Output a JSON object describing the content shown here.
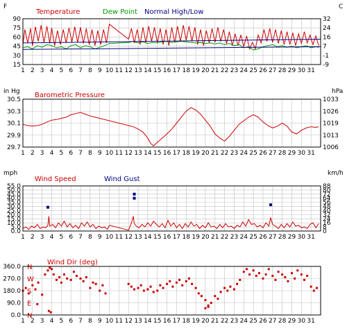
{
  "colors": {
    "background": "#ffffff",
    "panel_border": "#000000",
    "grid": "#c0c0c0",
    "temperature": "#cc0000",
    "dew_point": "#009900",
    "normal_hilo": "#000080",
    "pressure": "#cc0000",
    "wind_speed": "#cc0000",
    "wind_gust": "#000080",
    "wind_dir": "#cc0000"
  },
  "x_ticks": [
    "1",
    "2",
    "3",
    "4",
    "5",
    "6",
    "7",
    "8",
    "9",
    "10",
    "11",
    "12",
    "13",
    "14",
    "15",
    "16",
    "17",
    "18",
    "19",
    "20",
    "21",
    "22",
    "23",
    "24",
    "25",
    "26",
    "27",
    "28",
    "29",
    "30",
    "31"
  ],
  "chart_data": [
    {
      "type": "line",
      "title": "",
      "legend": [
        "Temperature",
        "Dew Point",
        "Normal High/Low"
      ],
      "left_unit": "F",
      "right_unit": "C",
      "xlim": [
        1,
        32
      ],
      "ylim": [
        15,
        100
      ],
      "y_ticks_left": [
        "90",
        "75",
        "60",
        "45",
        "30",
        "15"
      ],
      "y_ticks_right": [
        "32",
        "24",
        "16",
        "7",
        "-1",
        "-9"
      ],
      "grid": true,
      "series": [
        {
          "name": "Temperature",
          "x": [
            1.0,
            1.2,
            1.5,
            1.8,
            2.0,
            2.3,
            2.6,
            2.9,
            3.2,
            3.5,
            3.8,
            4.0,
            4.3,
            4.6,
            4.9,
            5.2,
            5.5,
            5.8,
            6.1,
            6.4,
            6.7,
            7.0,
            7.3,
            7.6,
            7.9,
            8.2,
            8.5,
            8.8,
            9.1,
            9.4,
            9.7,
            10.0,
            12.0,
            12.3,
            12.6,
            12.9,
            13.2,
            13.5,
            13.8,
            14.1,
            14.4,
            14.7,
            15.0,
            15.3,
            15.6,
            15.9,
            16.2,
            16.5,
            16.8,
            17.1,
            17.4,
            17.7,
            18.0,
            18.3,
            18.6,
            18.9,
            19.2,
            19.5,
            19.8,
            20.1,
            20.4,
            20.7,
            21.0,
            21.3,
            21.6,
            21.9,
            22.2,
            22.5,
            22.8,
            23.1,
            23.4,
            23.7,
            24.0,
            24.3,
            24.6,
            24.9,
            25.2,
            25.5,
            25.8,
            26.1,
            26.4,
            26.7,
            27.0,
            27.3,
            27.6,
            27.9,
            28.2,
            28.5,
            28.8,
            29.1,
            29.4,
            29.7,
            30.0,
            30.3,
            30.6,
            30.9,
            31.2,
            31.5,
            31.8
          ],
          "y": [
            52,
            80,
            55,
            82,
            50,
            85,
            58,
            88,
            56,
            86,
            54,
            83,
            50,
            78,
            52,
            80,
            55,
            83,
            57,
            85,
            56,
            84,
            54,
            82,
            52,
            80,
            50,
            78,
            52,
            80,
            55,
            90,
            62,
            82,
            55,
            80,
            52,
            84,
            56,
            86,
            58,
            84,
            55,
            82,
            52,
            80,
            50,
            84,
            56,
            86,
            58,
            88,
            60,
            86,
            58,
            84,
            52,
            80,
            50,
            78,
            55,
            82,
            56,
            84,
            58,
            80,
            54,
            76,
            50,
            72,
            50,
            70,
            48,
            68,
            44,
            56,
            44,
            70,
            55,
            80,
            58,
            82,
            56,
            80,
            54,
            78,
            52,
            76,
            52,
            74,
            50,
            72,
            54,
            76,
            55,
            70,
            52,
            68,
            50
          ]
        },
        {
          "name": "Dew Point",
          "x": [
            1.0,
            1.5,
            2.0,
            2.5,
            3.0,
            3.5,
            4.0,
            4.5,
            5.0,
            5.5,
            6.0,
            6.5,
            7.0,
            7.5,
            8.0,
            8.5,
            9.0,
            9.5,
            10.0,
            12.0,
            12.5,
            13.0,
            13.5,
            14.0,
            14.5,
            15.0,
            15.5,
            16.0,
            16.5,
            17.0,
            17.5,
            18.0,
            18.5,
            19.0,
            19.5,
            20.0,
            20.5,
            21.0,
            21.5,
            22.0,
            22.5,
            23.0,
            23.5,
            24.0,
            24.5,
            25.0,
            25.5,
            26.0,
            26.5,
            27.0,
            27.5,
            28.0,
            28.5,
            29.0,
            29.5,
            30.0,
            30.5,
            31.0,
            31.5,
            31.8
          ],
          "y": [
            46,
            48,
            44,
            50,
            47,
            52,
            50,
            46,
            48,
            44,
            50,
            52,
            46,
            50,
            48,
            44,
            47,
            50,
            54,
            56,
            58,
            55,
            57,
            54,
            56,
            55,
            57,
            58,
            56,
            57,
            58,
            57,
            56,
            55,
            56,
            54,
            55,
            53,
            55,
            52,
            54,
            50,
            52,
            46,
            48,
            42,
            44,
            48,
            50,
            52,
            48,
            50,
            47,
            49,
            46,
            48,
            50,
            46,
            48,
            47
          ]
        },
        {
          "name": "Normal High",
          "x": [
            1,
            32
          ],
          "y": [
            55,
            62
          ]
        },
        {
          "name": "Normal Low",
          "x": [
            1,
            32
          ],
          "y": [
            43,
            48
          ]
        }
      ]
    },
    {
      "type": "line",
      "title": "Barometric Pressure",
      "left_unit": "in Hg",
      "right_unit": "hPa",
      "xlim": [
        1,
        32
      ],
      "ylim": [
        29.7,
        30.5
      ],
      "y_ticks_left": [
        "30.5",
        "30.3",
        "30.1",
        "29.9",
        "29.7"
      ],
      "y_ticks_right": [
        "1033",
        "1026",
        "1019",
        "1013",
        "1006"
      ],
      "grid": true,
      "series": [
        {
          "name": "Barometric Pressure",
          "x": [
            1.0,
            1.5,
            2.0,
            2.5,
            3.0,
            3.5,
            4.0,
            4.5,
            5.0,
            5.5,
            6.0,
            6.5,
            7.0,
            7.5,
            8.0,
            8.5,
            9.0,
            9.5,
            10.0,
            10.5,
            11.0,
            11.5,
            12.0,
            12.5,
            13.0,
            13.5,
            14.0,
            14.3,
            14.6,
            15.0,
            15.5,
            16.0,
            16.5,
            17.0,
            17.5,
            18.0,
            18.5,
            19.0,
            19.5,
            20.0,
            20.5,
            21.0,
            21.5,
            22.0,
            22.5,
            23.0,
            23.5,
            24.0,
            24.5,
            25.0,
            25.5,
            26.0,
            26.5,
            27.0,
            27.5,
            28.0,
            28.5,
            29.0,
            29.5,
            30.0,
            30.5,
            31.0,
            31.5,
            31.8
          ],
          "y": [
            30.08,
            30.06,
            30.05,
            30.06,
            30.08,
            30.12,
            30.15,
            30.16,
            30.18,
            30.2,
            30.24,
            30.26,
            30.28,
            30.25,
            30.22,
            30.2,
            30.18,
            30.16,
            30.14,
            30.12,
            30.1,
            30.08,
            30.06,
            30.04,
            30.0,
            29.95,
            29.85,
            29.76,
            29.72,
            29.78,
            29.85,
            29.92,
            30.0,
            30.1,
            30.2,
            30.3,
            30.36,
            30.32,
            30.25,
            30.15,
            30.05,
            29.92,
            29.85,
            29.8,
            29.88,
            29.98,
            30.08,
            30.14,
            30.2,
            30.24,
            30.2,
            30.12,
            30.06,
            30.02,
            30.05,
            30.1,
            30.05,
            29.95,
            29.92,
            29.98,
            30.02,
            30.04,
            30.03,
            30.04
          ]
        }
      ]
    },
    {
      "type": "line",
      "title": "",
      "legend": [
        "Wind Speed",
        "Wind Gust"
      ],
      "left_unit": "mph",
      "right_unit": "km/h",
      "xlim": [
        1,
        32
      ],
      "ylim": [
        0,
        55
      ],
      "y_ticks_left": [
        "55.0",
        "50.0",
        "45.0",
        "40.0",
        "35.0",
        "30.0",
        "25.0",
        "20.0",
        "15.0",
        "10.0",
        "5.0",
        "0.0"
      ],
      "y_ticks_right": [
        "88",
        "80",
        "72",
        "64",
        "56",
        "48",
        "40",
        "32",
        "24",
        "16",
        "8",
        "0"
      ],
      "grid": true,
      "series": [
        {
          "name": "Wind Speed",
          "x": [
            1.0,
            1.3,
            1.6,
            1.9,
            2.2,
            2.5,
            2.8,
            3.1,
            3.4,
            3.6,
            3.7,
            3.8,
            4.1,
            4.4,
            4.7,
            5.0,
            5.3,
            5.6,
            5.9,
            6.2,
            6.5,
            6.8,
            7.1,
            7.4,
            7.7,
            8.0,
            8.3,
            8.6,
            8.9,
            9.2,
            9.5,
            9.8,
            10.0,
            12.0,
            12.3,
            12.5,
            12.6,
            12.8,
            13.1,
            13.4,
            13.7,
            14.0,
            14.3,
            14.6,
            14.9,
            15.2,
            15.5,
            15.8,
            16.1,
            16.4,
            16.7,
            17.0,
            17.3,
            17.6,
            17.9,
            18.2,
            18.5,
            18.8,
            19.1,
            19.4,
            19.7,
            20.0,
            20.3,
            20.6,
            20.9,
            21.2,
            21.5,
            21.8,
            22.1,
            22.4,
            22.7,
            23.0,
            23.3,
            23.6,
            23.9,
            24.2,
            24.5,
            24.8,
            25.1,
            25.4,
            25.7,
            26.0,
            26.3,
            26.6,
            26.8,
            27.0,
            27.3,
            27.6,
            27.9,
            28.2,
            28.5,
            28.8,
            29.1,
            29.4,
            29.7,
            30.0,
            30.3,
            30.6,
            30.9,
            31.2,
            31.5,
            31.8
          ],
          "y": [
            3,
            5,
            2,
            6,
            4,
            8,
            3,
            5,
            4,
            7,
            18,
            6,
            8,
            4,
            10,
            6,
            12,
            5,
            9,
            4,
            7,
            3,
            10,
            6,
            11,
            5,
            8,
            3,
            6,
            4,
            5,
            2,
            7,
            1,
            10,
            18,
            9,
            6,
            4,
            8,
            5,
            10,
            6,
            12,
            8,
            5,
            9,
            4,
            13,
            6,
            10,
            4,
            8,
            3,
            9,
            5,
            11,
            6,
            8,
            3,
            7,
            4,
            10,
            5,
            6,
            3,
            8,
            4,
            9,
            5,
            6,
            3,
            7,
            5,
            11,
            6,
            14,
            8,
            9,
            5,
            7,
            4,
            10,
            6,
            16,
            8,
            6,
            3,
            8,
            4,
            9,
            5,
            11,
            6,
            7,
            4,
            5,
            3,
            8,
            10,
            4,
            9
          ]
        },
        {
          "name": "Wind Gust",
          "x": [
            3.6,
            12.6,
            12.6,
            26.8
          ],
          "y": [
            29,
            40,
            45,
            32
          ]
        }
      ]
    },
    {
      "type": "scatter",
      "title": "Wind Dir (deg)",
      "left_unit": "",
      "xlim": [
        1,
        32
      ],
      "ylim": [
        0,
        360
      ],
      "y_ticks_left": [
        "360.0",
        "270.0",
        "180.0",
        "90.0",
        "0.0"
      ],
      "y_compass": [
        "N",
        "W",
        "S",
        "E",
        "N"
      ],
      "grid": true,
      "series": [
        {
          "name": "Wind Dir (deg)",
          "x": [
            1.0,
            1.3,
            1.6,
            2.0,
            2.3,
            2.6,
            3.0,
            3.3,
            3.6,
            3.8,
            4.0,
            4.2,
            4.5,
            4.8,
            5.0,
            5.3,
            5.6,
            6.0,
            6.3,
            6.6,
            7.0,
            7.3,
            7.6,
            8.0,
            8.3,
            8.6,
            9.0,
            9.3,
            9.6,
            12.0,
            12.3,
            12.6,
            13.0,
            13.3,
            13.6,
            14.0,
            14.3,
            14.6,
            15.0,
            15.3,
            15.6,
            16.0,
            16.3,
            16.6,
            17.0,
            17.3,
            17.6,
            18.0,
            18.3,
            18.6,
            19.0,
            19.3,
            19.6,
            20.0,
            20.3,
            20.6,
            21.0,
            21.3,
            21.6,
            22.0,
            22.3,
            22.6,
            23.0,
            23.3,
            23.6,
            24.0,
            24.3,
            24.6,
            25.0,
            25.3,
            25.6,
            26.0,
            26.3,
            26.6,
            27.0,
            27.3,
            27.6,
            28.0,
            28.3,
            28.6,
            29.0,
            29.3,
            29.6,
            30.0,
            30.3,
            30.6,
            31.0,
            31.3,
            31.6,
            3.7,
            3.9,
            2.5,
            20.0,
            20.3
          ],
          "y": [
            180,
            200,
            160,
            220,
            190,
            240,
            150,
            300,
            330,
            350,
            340,
            300,
            260,
            280,
            240,
            300,
            270,
            260,
            320,
            290,
            270,
            250,
            280,
            200,
            240,
            230,
            180,
            220,
            160,
            230,
            210,
            190,
            200,
            220,
            180,
            190,
            210,
            170,
            180,
            220,
            200,
            230,
            250,
            210,
            240,
            260,
            220,
            250,
            270,
            230,
            200,
            160,
            140,
            110,
            60,
            90,
            140,
            120,
            170,
            200,
            180,
            210,
            190,
            230,
            260,
            320,
            340,
            300,
            330,
            290,
            310,
            270,
            300,
            340,
            290,
            260,
            320,
            300,
            280,
            250,
            310,
            270,
            330,
            300,
            260,
            290,
            210,
            180,
            200,
            30,
            20,
            80,
            50,
            70
          ]
        }
      ]
    }
  ]
}
